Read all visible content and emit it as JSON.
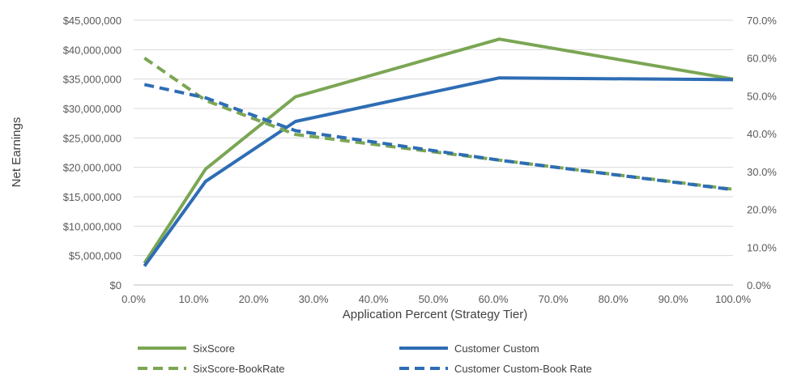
{
  "chart_data": {
    "type": "line",
    "xlabel": "Application Percent (Strategy Tier)",
    "ylabel": "Net Earnings",
    "x_ticks": [
      "0.0%",
      "10.0%",
      "20.0%",
      "30.0%",
      "40.0%",
      "50.0%",
      "60.0%",
      "70.0%",
      "80.0%",
      "90.0%",
      "100.0%"
    ],
    "y_left_ticks": [
      "$0",
      "$5,000,000",
      "$10,000,000",
      "$15,000,000",
      "$20,000,000",
      "$25,000,000",
      "$30,000,000",
      "$35,000,000",
      "$40,000,000",
      "$45,000,000"
    ],
    "y_right_ticks": [
      "0.0%",
      "10.0%",
      "20.0%",
      "30.0%",
      "40.0%",
      "50.0%",
      "60.0%",
      "70.0%"
    ],
    "xlim": [
      0,
      100
    ],
    "ylim_left": [
      0,
      45000000
    ],
    "ylim_right": [
      0,
      70
    ],
    "grid": true,
    "legend_position": "bottom",
    "series": [
      {
        "name": "SixScore",
        "axis": "left",
        "style": "solid",
        "color": "#7BA654",
        "x": [
          1.8,
          12,
          27,
          61,
          100
        ],
        "y": [
          3700000,
          19700000,
          32000000,
          41800000,
          35000000
        ]
      },
      {
        "name": "Customer Custom",
        "axis": "left",
        "style": "solid",
        "color": "#2E6DB4",
        "x": [
          1.8,
          12,
          27,
          61,
          100
        ],
        "y": [
          3200000,
          17600000,
          27800000,
          35200000,
          34900000
        ]
      },
      {
        "name": "SixScore-BookRate",
        "axis": "right",
        "style": "dashed",
        "color": "#7BA654",
        "x": [
          1.8,
          12,
          27,
          61,
          100
        ],
        "y": [
          60.0,
          48.8,
          39.8,
          33.0,
          25.3
        ]
      },
      {
        "name": "Customer Custom-Book Rate",
        "axis": "right",
        "style": "dashed",
        "color": "#2E6DB4",
        "x": [
          1.8,
          12,
          27,
          61,
          100
        ],
        "y": [
          53.0,
          49.5,
          40.8,
          33.0,
          25.2
        ]
      }
    ]
  }
}
